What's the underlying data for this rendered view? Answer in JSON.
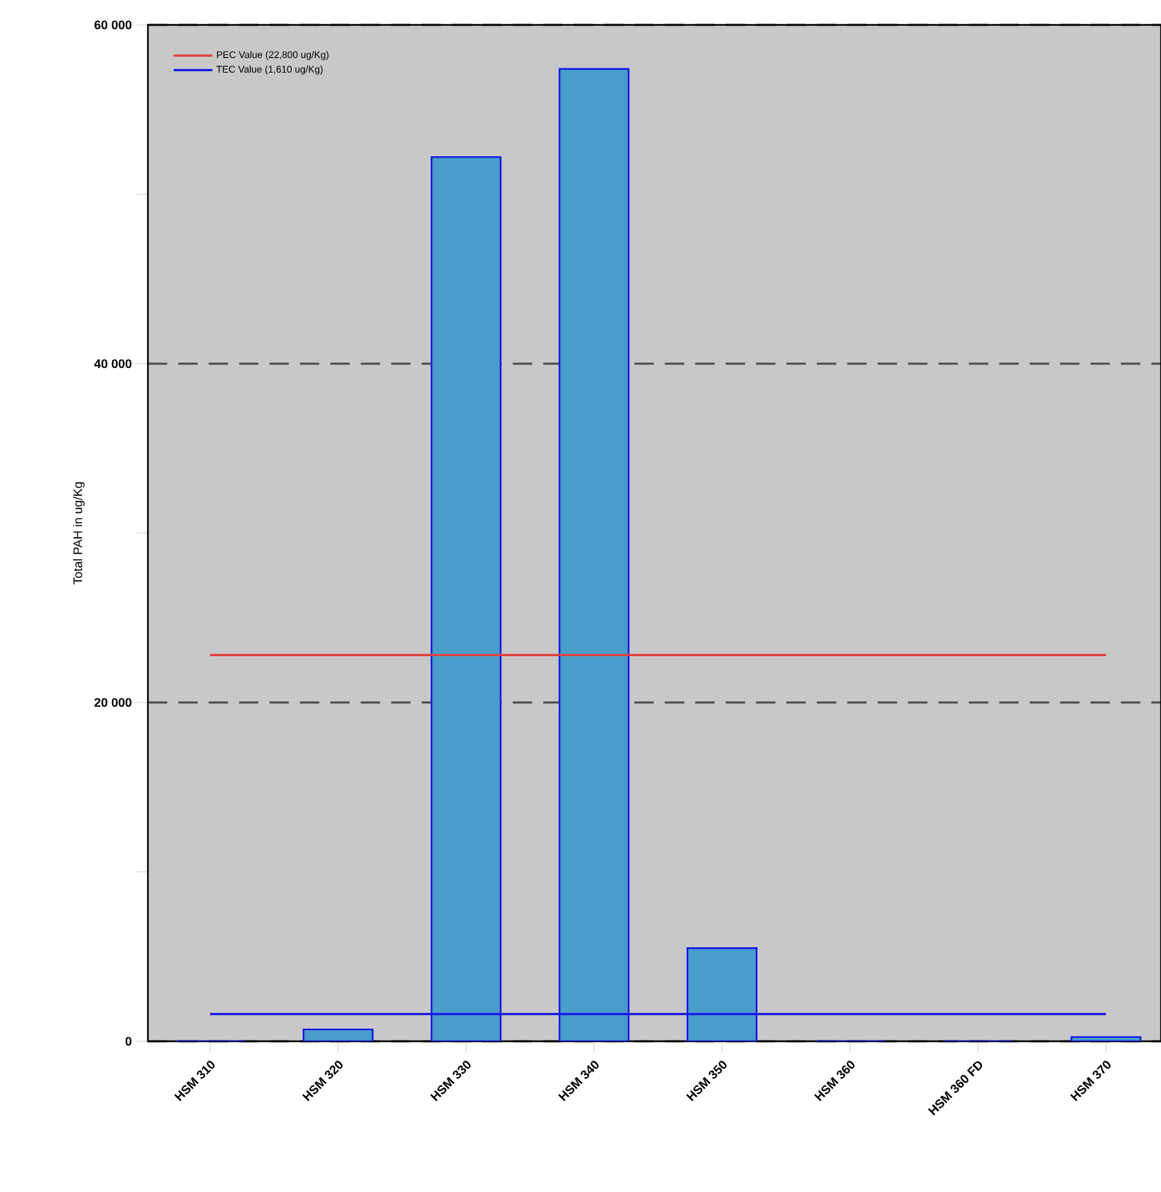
{
  "chart_data": {
    "type": "bar",
    "ylabel": "Total PAH in ug/Kg",
    "categories": [
      "HSM 310",
      "HSM 320",
      "HSM 330",
      "HSM 340",
      "HSM 350",
      "HSM 360",
      "HSM 360 FD",
      "HSM 370"
    ],
    "series": [
      {
        "color": "#4a9ccb",
        "values": [
          0,
          700,
          52200,
          57400,
          5500,
          0,
          0,
          250
        ]
      },
      {
        "type": "line",
        "name": "PEC Value (22,800 ug/Kg)",
        "color": "#e04040",
        "values": [
          22800,
          22800,
          22800,
          22800,
          22800,
          22800,
          22800,
          22800
        ]
      },
      {
        "type": "line",
        "name": "TEC Value (1,610 ug/Kg)",
        "color": "#1a1ae0",
        "values": [
          1610,
          1610,
          1610,
          1610,
          1610,
          1610,
          1610,
          1610
        ]
      }
    ],
    "ylim": [
      0,
      60000
    ],
    "yticks": [
      0,
      {
        "value": 10000,
        "label": null
      },
      {
        "value": 20000,
        "label": "20 000"
      },
      {
        "value": 30000,
        "label": null
      },
      {
        "value": 40000,
        "label": "40 000"
      },
      {
        "value": 50000,
        "label": null
      },
      {
        "value": 60000,
        "label": "60 000"
      }
    ],
    "grid": "y",
    "legend": "top left",
    "marker": "none",
    "line_style": "solid"
  }
}
